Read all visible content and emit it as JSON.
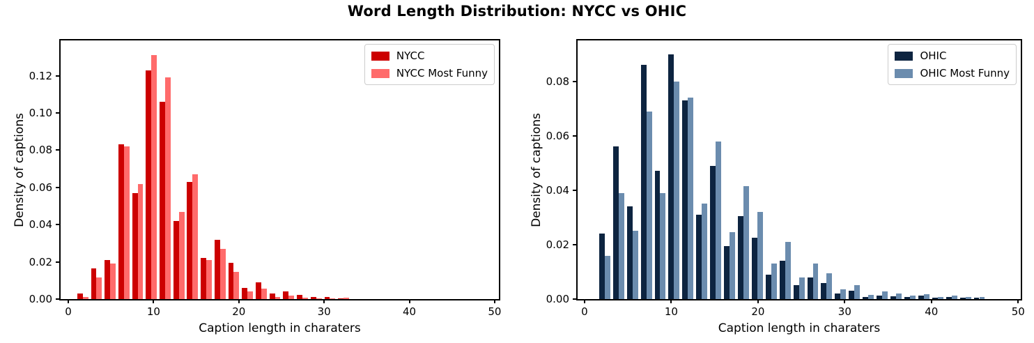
{
  "title": "Word Length Distribution: NYCC vs OHIC",
  "colors": {
    "background": "#ffffff",
    "axis": "#000000",
    "nycc": "#cc0000",
    "nycc_most_funny": "#ff6b6b",
    "ohic": "#0d2440",
    "ohic_most_funny": "#6b8cae"
  },
  "chart_data": [
    {
      "type": "bar",
      "subplot": "left",
      "xlabel": "Caption length in charaters",
      "ylabel": "Density of captions",
      "xlim": [
        -0.9,
        50.5
      ],
      "ylim": [
        0,
        0.139
      ],
      "grid": false,
      "legend_position": "upper right",
      "xticks": [
        0,
        10,
        20,
        30,
        40,
        50
      ],
      "xtick_labels": [
        "0",
        "10",
        "20",
        "30",
        "40",
        "50"
      ],
      "yticks": [
        0,
        0.02,
        0.04,
        0.06,
        0.08,
        0.1,
        0.12
      ],
      "ytick_labels": [
        "0.00",
        "0.02",
        "0.04",
        "0.06",
        "0.08",
        "0.10",
        "0.12"
      ],
      "bar_width": 0.645,
      "bin_starts": [
        1.05,
        2.66,
        4.27,
        5.88,
        7.49,
        9.1,
        10.71,
        12.32,
        13.93,
        15.54,
        17.15,
        18.76,
        20.37,
        21.98,
        23.59,
        25.2,
        26.81,
        28.42,
        30.03,
        31.64
      ],
      "series": [
        {
          "name": "NYCC",
          "color": "#cc0000",
          "values": [
            0.003,
            0.0165,
            0.021,
            0.083,
            0.057,
            0.123,
            0.106,
            0.042,
            0.063,
            0.022,
            0.032,
            0.0195,
            0.006,
            0.009,
            0.003,
            0.004,
            0.0022,
            0.001,
            0.001,
            0.0003
          ]
        },
        {
          "name": "NYCC Most Funny",
          "color": "#ff6b6b",
          "values": [
            0.001,
            0.0115,
            0.019,
            0.082,
            0.062,
            0.131,
            0.119,
            0.047,
            0.067,
            0.021,
            0.027,
            0.0145,
            0.004,
            0.0055,
            0.001,
            0.002,
            0.0008,
            0.0005,
            0.0004,
            0.0008
          ]
        }
      ]
    },
    {
      "type": "bar",
      "subplot": "right",
      "xlabel": "Caption length in charaters",
      "ylabel": "Density of captions",
      "xlim": [
        -0.8,
        50.3
      ],
      "ylim": [
        0,
        0.095
      ],
      "grid": false,
      "legend_position": "upper right",
      "xticks": [
        0,
        10,
        20,
        30,
        40,
        50
      ],
      "xtick_labels": [
        "0",
        "10",
        "20",
        "30",
        "40",
        "50"
      ],
      "yticks": [
        0,
        0.02,
        0.04,
        0.06,
        0.08
      ],
      "ytick_labels": [
        "0.00",
        "0.02",
        "0.04",
        "0.06",
        "0.08"
      ],
      "bar_width": 0.64,
      "bin_starts": [
        1.68,
        3.28,
        4.88,
        6.48,
        8.08,
        9.68,
        11.28,
        12.88,
        14.48,
        16.08,
        17.68,
        19.28,
        20.88,
        22.48,
        24.08,
        25.68,
        27.28,
        28.88,
        30.48,
        32.08,
        33.68,
        35.28,
        36.88,
        38.48,
        40.08,
        41.68,
        43.28,
        44.88
      ],
      "series": [
        {
          "name": "OHIC",
          "color": "#0d2440",
          "values": [
            0.024,
            0.056,
            0.034,
            0.086,
            0.047,
            0.09,
            0.073,
            0.031,
            0.049,
            0.0195,
            0.0305,
            0.0225,
            0.009,
            0.014,
            0.005,
            0.008,
            0.006,
            0.002,
            0.003,
            0.0007,
            0.0013,
            0.001,
            0.0008,
            0.0012,
            0.0005,
            0.0008,
            0.0004,
            0.0006
          ]
        },
        {
          "name": "OHIC Most Funny",
          "color": "#6b8cae",
          "values": [
            0.016,
            0.039,
            0.025,
            0.069,
            0.039,
            0.08,
            0.074,
            0.035,
            0.058,
            0.0245,
            0.0415,
            0.032,
            0.013,
            0.021,
            0.008,
            0.013,
            0.0095,
            0.0035,
            0.005,
            0.0015,
            0.0027,
            0.002,
            0.0012,
            0.0018,
            0.0008,
            0.0012,
            0.0009,
            0.0007
          ]
        }
      ]
    }
  ]
}
